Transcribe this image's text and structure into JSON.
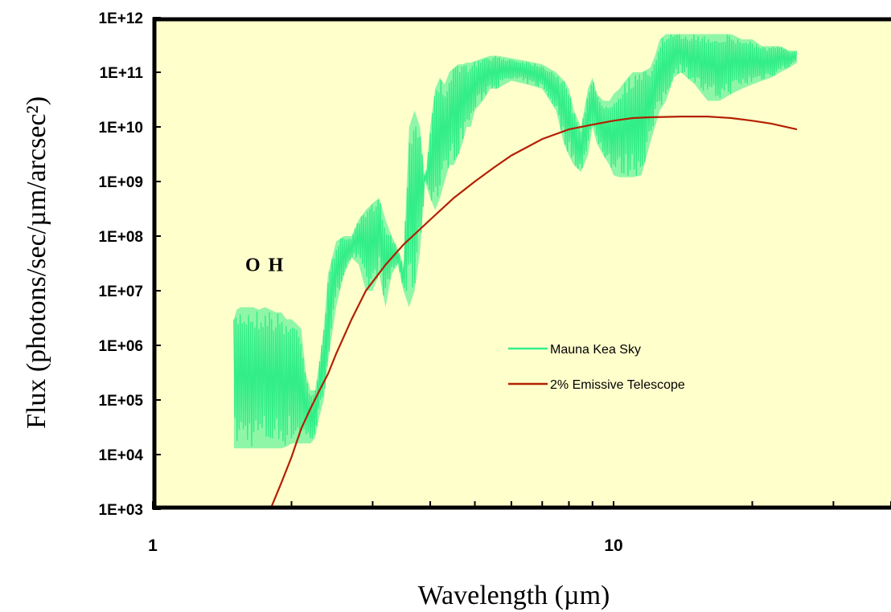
{
  "chart_data": {
    "type": "line",
    "title": "",
    "xlabel": "Wavelength (µm)",
    "ylabel": "Flux (photons/sec/µm/arcsec²)",
    "xscale": "log",
    "yscale": "log",
    "xlim": [
      1,
      40
    ],
    "ylim": [
      1000,
      1000000000000
    ],
    "x_ticks": [
      1,
      10
    ],
    "x_tick_labels": [
      "1",
      "10"
    ],
    "y_ticks": [
      1000,
      10000,
      100000,
      1000000,
      10000000,
      100000000,
      1000000000,
      10000000000,
      100000000000,
      1000000000000
    ],
    "y_tick_labels": [
      "1E+03",
      "1E+04",
      "1E+05",
      "1E+06",
      "1E+07",
      "1E+08",
      "1E+09",
      "1E+10",
      "1E+11",
      "1E+12"
    ],
    "grid": false,
    "background": "#ffffcc",
    "legend_position": "center-right",
    "annotations": [
      {
        "text": "O H",
        "x": 1.9,
        "y": 30000000
      }
    ],
    "series": [
      {
        "name": "Mauna Kea Sky",
        "color": "#33ee88",
        "style": "noisy-band",
        "x": [
          1.5,
          1.52,
          1.55,
          1.6,
          1.65,
          1.7,
          1.75,
          1.8,
          1.85,
          1.9,
          1.95,
          2.0,
          2.05,
          2.1,
          2.15,
          2.2,
          2.25,
          2.3,
          2.35,
          2.4,
          2.5,
          2.6,
          2.7,
          2.8,
          2.9,
          3.0,
          3.1,
          3.2,
          3.3,
          3.4,
          3.5,
          3.6,
          3.7,
          3.8,
          3.9,
          4.0,
          4.1,
          4.2,
          4.3,
          4.4,
          4.5,
          4.6,
          4.7,
          4.8,
          4.9,
          5.0,
          5.2,
          5.4,
          5.6,
          5.8,
          6.0,
          6.5,
          7.0,
          7.5,
          7.8,
          8.0,
          8.2,
          8.5,
          8.8,
          9.0,
          9.2,
          9.5,
          9.8,
          10.0,
          10.3,
          10.6,
          11.0,
          11.5,
          12.0,
          12.3,
          12.6,
          13.0,
          13.5,
          14.0,
          15.0,
          16.0,
          17.0,
          18.0,
          19.0,
          20.0,
          21.0,
          22.0,
          23.0,
          24.0,
          25.0
        ],
        "upper": [
          3000000,
          4500000,
          5000000,
          5000000,
          5000000,
          4500000,
          5000000,
          4500000,
          4000000,
          4000000,
          3000000,
          3000000,
          2500000,
          2000000,
          300000,
          150000,
          150000,
          500000,
          2000000,
          20000000,
          80000000,
          100000000,
          100000000,
          200000000,
          300000000,
          400000000,
          500000000,
          200000000,
          100000000,
          60000000,
          30000000,
          10000000000,
          20000000000,
          10000000000,
          1000000000,
          10000000000,
          50000000000,
          80000000000,
          60000000000,
          100000000000,
          120000000000,
          140000000000,
          140000000000,
          150000000000,
          150000000000,
          160000000000,
          180000000000,
          200000000000,
          200000000000,
          190000000000,
          180000000000,
          160000000000,
          140000000000,
          100000000000,
          70000000000,
          50000000000,
          20000000000,
          10000000000,
          50000000000,
          80000000000,
          40000000000,
          30000000000,
          30000000000,
          40000000000,
          50000000000,
          70000000000,
          100000000000,
          100000000000,
          120000000000,
          200000000000,
          400000000000,
          500000000000,
          500000000000,
          500000000000,
          500000000000,
          500000000000,
          500000000000,
          500000000000,
          400000000000,
          400000000000,
          300000000000,
          300000000000,
          300000000000,
          250000000000,
          250000000000
        ],
        "lower": [
          13000,
          13000,
          13000,
          13000,
          13000,
          13000,
          13000,
          13000,
          13000,
          13000,
          14000,
          16000,
          16000,
          16000,
          16000,
          16000,
          20000,
          50000,
          100000,
          500000,
          5000000,
          20000000,
          40000000,
          30000000,
          10000000,
          10000000,
          20000000,
          5000000,
          20000000,
          30000000,
          10000000,
          5000000,
          10000000,
          50000000,
          1000000000,
          500000000,
          300000000,
          500000000,
          1000000000,
          2000000000,
          2000000000,
          3000000000,
          5000000000,
          10000000000,
          10000000000,
          20000000000,
          30000000000,
          50000000000,
          50000000000,
          60000000000,
          70000000000,
          60000000000,
          50000000000,
          20000000000,
          5000000000,
          3000000000,
          2000000000,
          1500000000,
          3000000000,
          10000000000,
          5000000000,
          3000000000,
          2000000000,
          1300000000,
          1200000000,
          1200000000,
          1200000000,
          1300000000,
          5000000000,
          10000000000,
          20000000000,
          30000000000,
          80000000000,
          100000000000,
          60000000000,
          30000000000,
          30000000000,
          40000000000,
          50000000000,
          60000000000,
          70000000000,
          80000000000,
          100000000000,
          120000000000,
          150000000000
        ]
      },
      {
        "name": "2% Emissive Telescope",
        "color": "#b22000",
        "style": "line",
        "x": [
          1.8,
          1.9,
          2.0,
          2.1,
          2.2,
          2.3,
          2.4,
          2.5,
          2.7,
          2.9,
          3.2,
          3.5,
          4.0,
          4.5,
          5.0,
          5.5,
          6.0,
          7.0,
          8.0,
          9.0,
          10.0,
          11.0,
          12.0,
          14.0,
          16.0,
          18.0,
          20.0,
          22.0,
          25.0
        ],
        "y": [
          1000,
          3000,
          9000,
          30000,
          70000,
          150000,
          300000,
          700000,
          3000000,
          10000000,
          30000000,
          70000000,
          200000000,
          500000000,
          1000000000,
          1800000000,
          3000000000,
          6000000000,
          9000000000,
          11000000000,
          13000000000,
          14500000000,
          15000000000,
          15500000000,
          15500000000,
          14500000000,
          13000000000,
          11500000000,
          9000000000
        ]
      }
    ]
  }
}
